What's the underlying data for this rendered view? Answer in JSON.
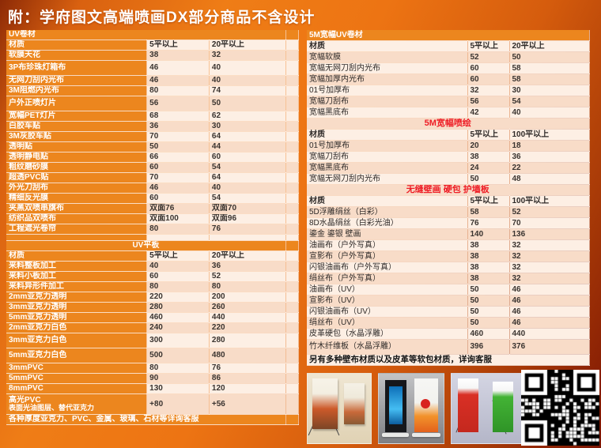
{
  "title": "附：学府图文高端喷画DX部分商品不含设计",
  "colors": {
    "accent_orange": "#ec861e",
    "row_peach": "#f8dcc8",
    "row_light": "#fdefe4",
    "highlight_red": "#ee1c25",
    "background_orange": "#ed7413",
    "background_dark_red": "#7d1503",
    "title_text": "#ffffff"
  },
  "left_table": {
    "rows": [
      [
        "UV卷材",
        "",
        "",
        "sec"
      ],
      [
        "材质",
        "5平以上",
        "20平以上",
        "hdr"
      ],
      [
        "软膜天花",
        "38",
        "32",
        "d"
      ],
      [
        "3P布珍珠灯箱布",
        "46",
        "40",
        "dt"
      ],
      [
        "无网刀刮内光布",
        "46",
        "40",
        "d"
      ],
      [
        "3M阻燃内光布",
        "80",
        "74",
        "d"
      ],
      [
        "户外正喷灯片",
        "56",
        "50",
        "dt"
      ],
      [
        "宽幅PET灯片",
        "68",
        "62",
        "d"
      ],
      [
        "白胶车贴",
        "36",
        "30",
        "d"
      ],
      [
        "3M灰胶车贴",
        "70",
        "64",
        "d"
      ],
      [
        "透明贴",
        "50",
        "44",
        "d"
      ],
      [
        "透明静电贴",
        "66",
        "60",
        "d"
      ],
      [
        "粗纹磨砂膜",
        "60",
        "54",
        "d"
      ],
      [
        "超透PVC贴",
        "70",
        "64",
        "d"
      ],
      [
        "外光刀刮布",
        "46",
        "40",
        "d"
      ],
      [
        "精细反光膜",
        "60",
        "54",
        "d"
      ],
      [
        "夹黑双喷串旗布",
        "双面76",
        "双面70",
        "d"
      ],
      [
        "纺织品双喷布",
        "双面100",
        "双面96",
        "d"
      ],
      [
        "工程遮光卷帘",
        "80",
        "76",
        "d"
      ],
      [
        "",
        "",
        "",
        "sp"
      ],
      [
        "UV平板",
        "",
        "",
        "secc"
      ],
      [
        "材质",
        "5平以上",
        "20平以上",
        "hdr"
      ],
      [
        "来料整板加工",
        "40",
        "36",
        "d"
      ],
      [
        "来料小板加工",
        "60",
        "52",
        "d"
      ],
      [
        "来料异形件加工",
        "80",
        "80",
        "d"
      ],
      [
        "2mm亚克力透明",
        "220",
        "200",
        "d"
      ],
      [
        "3mm亚克力透明",
        "280",
        "260",
        "d"
      ],
      [
        "5mm亚克力透明",
        "460",
        "440",
        "d"
      ],
      [
        "2mm亚克力白色",
        "240",
        "220",
        "d"
      ],
      [
        "3mm亚克力白色",
        "300",
        "280",
        "dt"
      ],
      [
        "5mm亚克力白色",
        "500",
        "480",
        "dt"
      ],
      [
        "3mmPVC",
        "80",
        "76",
        "d"
      ],
      [
        "5mmPVC",
        "90",
        "86",
        "d"
      ],
      [
        "8mmPVC",
        "130",
        "120",
        "d"
      ],
      [
        "高光PVC\n表面光油图层、替代亚克力",
        "+80",
        "+56",
        "d2"
      ],
      [
        "各种厚度亚克力、PVC、金属、玻璃、石材等详询客服",
        "",
        "",
        "foot"
      ]
    ]
  },
  "right_table": {
    "rows": [
      [
        "5M宽幅UV卷材",
        "",
        "",
        "sec"
      ],
      [
        "材质",
        "5平以上",
        "20平以上",
        "hdr"
      ],
      [
        "宽幅软膜",
        "52",
        "50",
        "d"
      ],
      [
        "宽幅无网刀刮内光布",
        "60",
        "58",
        "d"
      ],
      [
        "宽幅加厚内光布",
        "60",
        "58",
        "d"
      ],
      [
        "01号加厚布",
        "32",
        "30",
        "d"
      ],
      [
        "宽幅刀刮布",
        "56",
        "54",
        "d"
      ],
      [
        "宽幅黑底布",
        "42",
        "40",
        "d"
      ],
      [
        "5M宽幅喷绘",
        "",
        "",
        "red"
      ],
      [
        "材质",
        "5平以上",
        "100平以上",
        "hdr"
      ],
      [
        "01号加厚布",
        "20",
        "18",
        "d"
      ],
      [
        "宽幅刀刮布",
        "38",
        "36",
        "d"
      ],
      [
        "宽幅黑底布",
        "24",
        "22",
        "d"
      ],
      [
        "宽幅无网刀刮内光布",
        "50",
        "48",
        "d"
      ],
      [
        "无缝壁画 硬包 护墙板",
        "",
        "",
        "red"
      ],
      [
        "材质",
        "5平以上",
        "100平以上",
        "hdr"
      ],
      [
        "5D浮雕绢丝（白彩）",
        "58",
        "52",
        "d"
      ],
      [
        "8D水晶绢丝（白彩光油）",
        "76",
        "70",
        "d"
      ],
      [
        "鎏金 鎏银 壁画",
        "140",
        "136",
        "d"
      ],
      [
        "油画布（户外写真）",
        "38",
        "32",
        "d"
      ],
      [
        "宣影布（户外写真）",
        "38",
        "32",
        "d"
      ],
      [
        "闪银油画布（户外写真）",
        "38",
        "32",
        "d"
      ],
      [
        "绢丝布（户外写真）",
        "38",
        "32",
        "d"
      ],
      [
        "油画布（UV）",
        "50",
        "46",
        "d"
      ],
      [
        "宣影布（UV）",
        "50",
        "46",
        "d"
      ],
      [
        "闪银油画布（UV）",
        "50",
        "46",
        "d"
      ],
      [
        "绢丝布（UV）",
        "50",
        "46",
        "d"
      ],
      [
        "皮革硬包（水晶浮雕）",
        "460",
        "440",
        "d"
      ],
      [
        "竹木纤维板（水晶浮雕）",
        "396",
        "376",
        "dt"
      ],
      [
        "另有多种壁布材质以及皮革等软包材质，详询客服",
        "",
        "",
        "note"
      ]
    ]
  }
}
